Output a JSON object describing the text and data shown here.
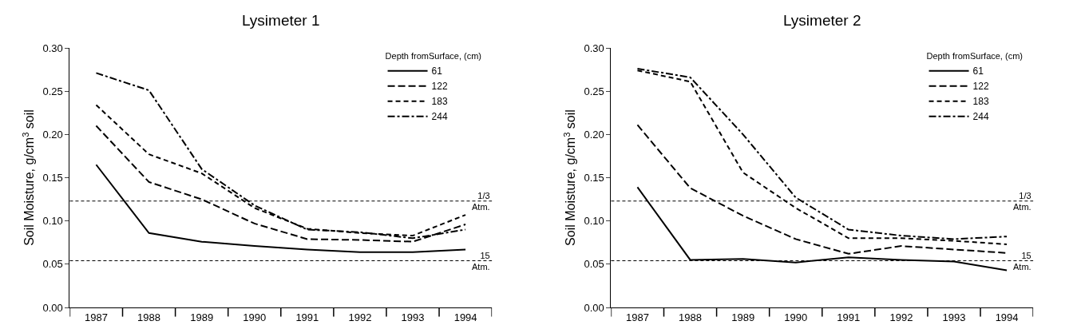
{
  "chart_data": [
    {
      "type": "line",
      "title": "Lysimeter 1",
      "ylabel": "Soil Moisture, g/cm$^{3}$ soil",
      "legend_title": "Depth fromSurface, (cm)",
      "legend": "top right",
      "categories": [
        "1987",
        "1988",
        "1989",
        "1990",
        "1991",
        "1992",
        "1993",
        "1994"
      ],
      "ylim": [
        0,
        0.3
      ],
      "yticks": [
        {
          "value": 0,
          "label": "0.00"
        },
        {
          "value": 0.05,
          "label": "0.05"
        },
        {
          "value": 0.1,
          "label": "0.10"
        },
        {
          "value": 0.15,
          "label": "0.15"
        },
        {
          "value": 0.2,
          "label": "0.20"
        },
        {
          "value": 0.25,
          "label": "0.25"
        },
        {
          "value": 0.3,
          "label": "0.30"
        }
      ],
      "series": [
        {
          "name": "61",
          "color": "#000000",
          "line_style": "solid",
          "values": [
            0.165,
            0.086,
            0.076,
            0.071,
            0.067,
            0.064,
            0.064,
            0.067
          ]
        },
        {
          "name": "122",
          "color": "#000000",
          "line_style": "dashed",
          "values": [
            0.21,
            0.145,
            0.125,
            0.097,
            0.079,
            0.078,
            0.076,
            0.096
          ]
        },
        {
          "name": "183",
          "color": "#000000",
          "line_style": "dotted",
          "values": [
            0.234,
            0.177,
            0.155,
            0.115,
            0.091,
            0.086,
            0.083,
            0.107
          ]
        },
        {
          "name": "244",
          "color": "#000000",
          "line_style": "dashdot",
          "values": [
            0.271,
            0.251,
            0.16,
            0.118,
            0.09,
            0.087,
            0.08,
            0.09
          ]
        }
      ],
      "ref_lines": [
        {
          "axis": "y",
          "value": 0.123,
          "label": "1/3\nAtm.",
          "line_style": "dashed",
          "color": "#000000"
        },
        {
          "axis": "y",
          "value": 0.054,
          "label": "15\nAtm.",
          "line_style": "dashed",
          "color": "#000000"
        }
      ]
    },
    {
      "type": "line",
      "title": "Lysimeter 2",
      "ylabel": "Soil Moisture, g/cm$^{3}$ soil",
      "legend_title": "Depth fromSurface, (cm)",
      "legend": "top right",
      "categories": [
        "1987",
        "1988",
        "1989",
        "1990",
        "1991",
        "1992",
        "1993",
        "1994"
      ],
      "ylim": [
        0,
        0.3
      ],
      "yticks": [
        {
          "value": 0,
          "label": "0.00"
        },
        {
          "value": 0.05,
          "label": "0.05"
        },
        {
          "value": 0.1,
          "label": "0.10"
        },
        {
          "value": 0.15,
          "label": "0.15"
        },
        {
          "value": 0.2,
          "label": "0.20"
        },
        {
          "value": 0.25,
          "label": "0.25"
        },
        {
          "value": 0.3,
          "label": "0.30"
        }
      ],
      "series": [
        {
          "name": "61",
          "color": "#000000",
          "line_style": "solid",
          "values": [
            0.139,
            0.055,
            0.056,
            0.052,
            0.058,
            0.055,
            0.053,
            0.043
          ]
        },
        {
          "name": "122",
          "color": "#000000",
          "line_style": "dashed",
          "values": [
            0.211,
            0.138,
            0.106,
            0.079,
            0.062,
            0.071,
            0.067,
            0.063
          ]
        },
        {
          "name": "183",
          "color": "#000000",
          "line_style": "dotted",
          "values": [
            0.274,
            0.261,
            0.156,
            0.115,
            0.08,
            0.08,
            0.077,
            0.073
          ]
        },
        {
          "name": "244",
          "color": "#000000",
          "line_style": "dashdot",
          "values": [
            0.276,
            0.266,
            0.2,
            0.127,
            0.09,
            0.083,
            0.079,
            0.082
          ]
        }
      ],
      "ref_lines": [
        {
          "axis": "y",
          "value": 0.123,
          "label": "1/3\nAtm.",
          "line_style": "dashed",
          "color": "#000000"
        },
        {
          "axis": "y",
          "value": 0.054,
          "label": "15\nAtm.",
          "line_style": "dashed",
          "color": "#000000"
        }
      ]
    }
  ]
}
